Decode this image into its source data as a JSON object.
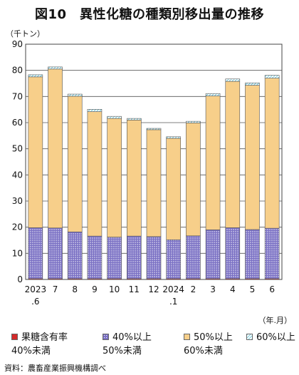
{
  "title": "図10　異性化糖の種類別移出量の推移",
  "source": "資料：農畜産業振興機構調べ",
  "chart_data": {
    "type": "bar",
    "stacked": true,
    "ylabel": "（千トン）",
    "xlabel": "（年.月）",
    "ylim": [
      0,
      90
    ],
    "yticks": [
      0,
      10,
      20,
      30,
      40,
      50,
      60,
      70,
      80,
      90
    ],
    "grid": true,
    "legend_position": "bottom",
    "categories": [
      [
        "2023",
        ".6"
      ],
      [
        "7"
      ],
      [
        "8"
      ],
      [
        "9"
      ],
      [
        "10"
      ],
      [
        "11"
      ],
      [
        "12"
      ],
      [
        "2024",
        ".1"
      ],
      [
        "2"
      ],
      [
        "3"
      ],
      [
        "4"
      ],
      [
        "5"
      ],
      [
        "6"
      ]
    ],
    "series": [
      {
        "name": "果糖含有率40%未満",
        "color": "#d42a2a",
        "values": [
          0.3,
          0.3,
          0.3,
          0.3,
          0.3,
          0.3,
          0.3,
          0.3,
          0.3,
          0.3,
          0.3,
          0.3,
          0.3
        ]
      },
      {
        "name": "40%以上50%未満",
        "color": "#6f64b8",
        "pattern": "dots",
        "values": [
          19.5,
          19.4,
          17.9,
          16.3,
          15.9,
          16.3,
          16.1,
          14.9,
          16.4,
          18.7,
          19.5,
          18.8,
          19.3
        ]
      },
      {
        "name": "50%以上60%未満",
        "color": "#f7cf8a",
        "values": [
          57.7,
          60.8,
          51.9,
          47.6,
          45.4,
          44.4,
          40.9,
          38.8,
          43.2,
          51.2,
          56.0,
          55.2,
          57.4
        ]
      },
      {
        "name": "60%以上",
        "color": "#b9e6ef",
        "pattern": "hatch",
        "values": [
          0.8,
          0.8,
          0.8,
          0.9,
          0.8,
          0.6,
          0.5,
          0.6,
          0.6,
          0.9,
          0.9,
          0.9,
          1.1
        ]
      }
    ]
  }
}
